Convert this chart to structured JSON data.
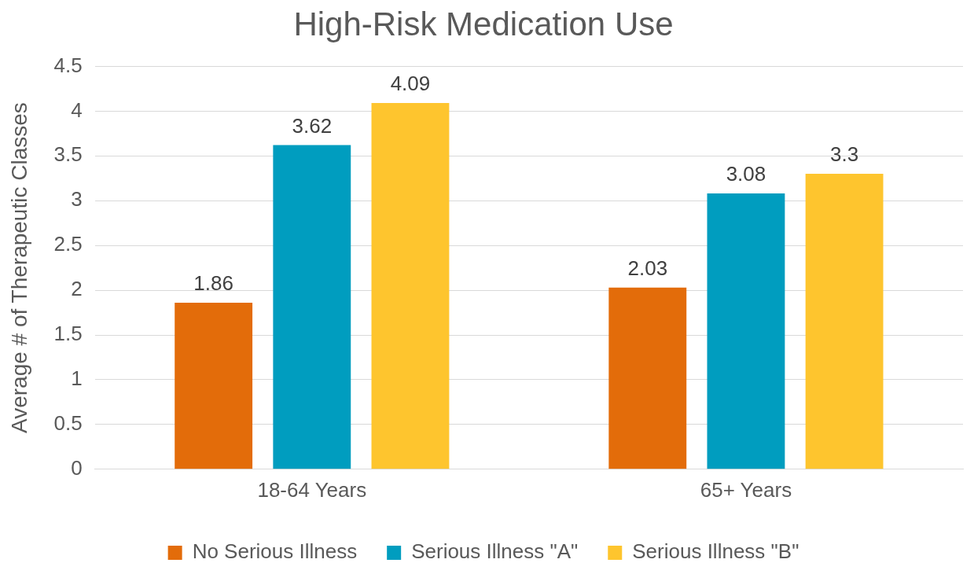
{
  "chart_data": {
    "type": "bar",
    "title": "High-Risk Medication Use",
    "ylabel": "Average # of Therapeutic Classes",
    "categories": [
      "18-64 Years",
      "65+ Years"
    ],
    "series": [
      {
        "name": "No Serious Illness",
        "color": "#e36c0a",
        "values": [
          1.86,
          2.03
        ]
      },
      {
        "name": "Serious Illness \"A\"",
        "color": "#009dbf",
        "values": [
          3.62,
          3.08
        ]
      },
      {
        "name": "Serious Illness \"B\"",
        "color": "#fec52e",
        "values": [
          4.09,
          3.3
        ]
      }
    ],
    "ylim": [
      0,
      4.5
    ],
    "yticks": [
      0,
      0.5,
      1,
      1.5,
      2,
      2.5,
      3,
      3.5,
      4,
      4.5
    ],
    "grid": "y",
    "legend": "bottom",
    "data_labels": true
  }
}
